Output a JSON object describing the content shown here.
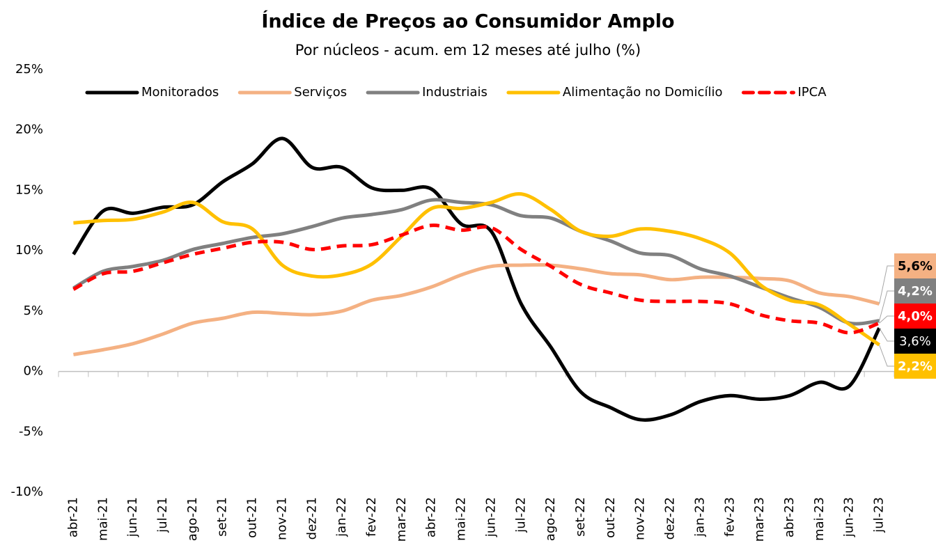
{
  "chart_data": {
    "type": "line",
    "title": "Índice de Preços ao Consumidor Amplo",
    "subtitle": "Por núcleos - acum. em 12 meses até julho (%)",
    "categories": [
      "abr-21",
      "mai-21",
      "jun-21",
      "jul-21",
      "ago-21",
      "set-21",
      "out-21",
      "nov-21",
      "dez-21",
      "jan-22",
      "fev-22",
      "mar-22",
      "abr-22",
      "mai-22",
      "jun-22",
      "jul-22",
      "ago-22",
      "set-22",
      "out-22",
      "nov-22",
      "dez-22",
      "jan-23",
      "fev-23",
      "mar-23",
      "abr-23",
      "mai-23",
      "jun-23",
      "jul-23"
    ],
    "series": [
      {
        "name": "Monitorados",
        "color": "#000000",
        "dashed": false,
        "label_text_color": "#ffffff",
        "label_bold": false,
        "values": [
          9.7,
          13.3,
          13.1,
          13.6,
          13.8,
          15.7,
          17.2,
          19.3,
          16.9,
          16.9,
          15.2,
          15.0,
          15.1,
          12.2,
          11.6,
          5.6,
          2.0,
          -1.7,
          -3.0,
          -4.0,
          -3.6,
          -2.5,
          -2.0,
          -2.3,
          -2.0,
          -0.9,
          -1.2,
          3.6
        ],
        "value_labels": [
          null,
          null,
          null,
          null,
          null,
          null,
          null,
          null,
          null,
          null,
          null,
          null,
          null,
          null,
          null,
          null,
          null,
          null,
          null,
          null,
          null,
          null,
          null,
          null,
          null,
          null,
          null,
          "3,6%"
        ]
      },
      {
        "name": "Serviços",
        "color": "#f4b183",
        "dashed": false,
        "label_text_color": "#000000",
        "label_bold": true,
        "values": [
          1.4,
          1.8,
          2.3,
          3.1,
          4.0,
          4.4,
          4.9,
          4.8,
          4.7,
          5.0,
          5.9,
          6.3,
          7.0,
          8.0,
          8.7,
          8.8,
          8.8,
          8.5,
          8.1,
          8.0,
          7.6,
          7.8,
          7.8,
          7.7,
          7.5,
          6.5,
          6.2,
          5.6
        ],
        "value_labels": [
          null,
          null,
          null,
          null,
          null,
          null,
          null,
          null,
          null,
          null,
          null,
          null,
          null,
          null,
          null,
          null,
          null,
          null,
          null,
          null,
          null,
          null,
          null,
          null,
          null,
          null,
          null,
          "5,6%"
        ]
      },
      {
        "name": "Industriais",
        "color": "#808080",
        "dashed": false,
        "label_text_color": "#ffffff",
        "label_bold": true,
        "values": [
          6.9,
          8.3,
          8.7,
          9.2,
          10.1,
          10.6,
          11.1,
          11.4,
          12.0,
          12.7,
          13.0,
          13.4,
          14.2,
          14.0,
          13.8,
          12.9,
          12.7,
          11.6,
          10.8,
          9.8,
          9.6,
          8.5,
          7.9,
          7.0,
          6.1,
          5.3,
          4.0,
          4.2
        ],
        "value_labels": [
          null,
          null,
          null,
          null,
          null,
          null,
          null,
          null,
          null,
          null,
          null,
          null,
          null,
          null,
          null,
          null,
          null,
          null,
          null,
          null,
          null,
          null,
          null,
          null,
          null,
          null,
          null,
          "4,2%"
        ]
      },
      {
        "name": "Alimentação no Domicílio",
        "color": "#ffc000",
        "dashed": false,
        "label_text_color": "#ffffff",
        "label_bold": true,
        "values": [
          12.3,
          12.5,
          12.6,
          13.2,
          14.0,
          12.4,
          11.8,
          8.8,
          7.9,
          8.0,
          8.9,
          11.2,
          13.5,
          13.5,
          14.0,
          14.7,
          13.4,
          11.6,
          11.2,
          11.8,
          11.6,
          11.0,
          9.8,
          7.2,
          5.9,
          5.5,
          3.9,
          2.2
        ],
        "value_labels": [
          null,
          null,
          null,
          null,
          null,
          null,
          null,
          null,
          null,
          null,
          null,
          null,
          null,
          null,
          null,
          null,
          null,
          null,
          null,
          null,
          null,
          null,
          null,
          null,
          null,
          null,
          null,
          "2,2%"
        ]
      },
      {
        "name": "IPCA",
        "color": "#ff0000",
        "dashed": true,
        "label_text_color": "#ffffff",
        "label_bold": true,
        "values": [
          6.8,
          8.1,
          8.3,
          9.0,
          9.7,
          10.2,
          10.7,
          10.7,
          10.1,
          10.4,
          10.5,
          11.3,
          12.1,
          11.7,
          11.9,
          10.1,
          8.7,
          7.2,
          6.5,
          5.9,
          5.8,
          5.8,
          5.6,
          4.7,
          4.2,
          4.0,
          3.2,
          4.0
        ],
        "value_labels": [
          null,
          null,
          null,
          null,
          null,
          null,
          null,
          null,
          null,
          null,
          null,
          null,
          null,
          null,
          null,
          null,
          null,
          null,
          null,
          null,
          null,
          null,
          null,
          null,
          null,
          null,
          null,
          "4,0%"
        ]
      }
    ],
    "ylim": [
      -10,
      25
    ],
    "yticks": [
      {
        "value": -10,
        "label": "-10%"
      },
      {
        "value": -5,
        "label": "-5%"
      },
      {
        "value": 0,
        "label": "0%"
      },
      {
        "value": 5,
        "label": "5%"
      },
      {
        "value": 10,
        "label": "10%"
      },
      {
        "value": 15,
        "label": "15%"
      },
      {
        "value": 20,
        "label": "20%"
      },
      {
        "value": 25,
        "label": "25%"
      }
    ],
    "grid": false,
    "legend": "top"
  }
}
